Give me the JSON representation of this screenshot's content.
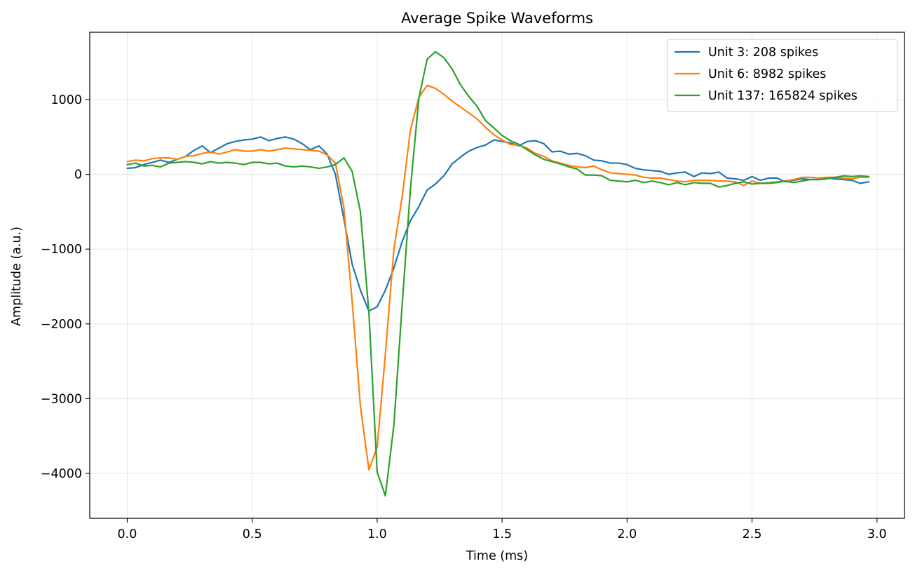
{
  "chart_data": {
    "type": "line",
    "title": "Average Spike Waveforms",
    "xlabel": "Time (ms)",
    "ylabel": "Amplitude (a.u.)",
    "xlim": [
      -0.15,
      3.11
    ],
    "ylim": [
      -4600,
      1900
    ],
    "xticks": [
      0.0,
      0.5,
      1.0,
      1.5,
      2.0,
      2.5,
      3.0
    ],
    "xtick_labels": [
      "0.0",
      "0.5",
      "1.0",
      "1.5",
      "2.0",
      "2.5",
      "3.0"
    ],
    "yticks": [
      -4000,
      -3000,
      -2000,
      -1000,
      0,
      1000
    ],
    "ytick_labels": [
      "−4000",
      "−3000",
      "−2000",
      "−1000",
      "0",
      "1000"
    ],
    "grid": true,
    "legend_position": "top-right",
    "x": [
      0.0,
      0.033,
      0.067,
      0.1,
      0.133,
      0.167,
      0.2,
      0.233,
      0.267,
      0.3,
      0.333,
      0.367,
      0.4,
      0.433,
      0.467,
      0.5,
      0.533,
      0.567,
      0.6,
      0.633,
      0.667,
      0.7,
      0.733,
      0.767,
      0.8,
      0.833,
      0.867,
      0.9,
      0.933,
      0.967,
      1.0,
      1.033,
      1.067,
      1.1,
      1.133,
      1.167,
      1.2,
      1.233,
      1.267,
      1.3,
      1.333,
      1.367,
      1.4,
      1.433,
      1.467,
      1.5,
      1.533,
      1.567,
      1.6,
      1.633,
      1.667,
      1.7,
      1.733,
      1.767,
      1.8,
      1.833,
      1.867,
      1.9,
      1.933,
      1.967,
      2.0,
      2.033,
      2.067,
      2.1,
      2.133,
      2.167,
      2.2,
      2.233,
      2.267,
      2.3,
      2.333,
      2.367,
      2.4,
      2.433,
      2.467,
      2.5,
      2.533,
      2.567,
      2.6,
      2.633,
      2.667,
      2.7,
      2.733,
      2.767,
      2.8,
      2.833,
      2.867,
      2.9,
      2.933,
      2.967
    ],
    "series": [
      {
        "name": "Unit 3: 208 spikes",
        "color": "#1f77b4",
        "values": [
          80,
          90,
          130,
          160,
          190,
          160,
          200,
          240,
          320,
          380,
          290,
          350,
          410,
          440,
          460,
          470,
          500,
          450,
          480,
          500,
          470,
          410,
          330,
          380,
          270,
          0,
          -600,
          -1200,
          -1550,
          -1830,
          -1770,
          -1550,
          -1250,
          -900,
          -620,
          -430,
          -210,
          -130,
          -20,
          140,
          230,
          310,
          360,
          390,
          460,
          440,
          420,
          380,
          440,
          450,
          410,
          300,
          310,
          270,
          280,
          250,
          190,
          180,
          150,
          150,
          130,
          80,
          60,
          50,
          40,
          0,
          20,
          30,
          -30,
          20,
          10,
          30,
          -50,
          -60,
          -80,
          -30,
          -80,
          -50,
          -50,
          -100,
          -80,
          -60,
          -70,
          -70,
          -50,
          -60,
          -70,
          -80,
          -120,
          -100
        ]
      },
      {
        "name": "Unit 6: 8982 spikes",
        "color": "#ff7f0e",
        "values": [
          170,
          190,
          180,
          210,
          220,
          220,
          200,
          240,
          250,
          280,
          300,
          270,
          300,
          330,
          310,
          310,
          330,
          310,
          330,
          350,
          340,
          330,
          320,
          310,
          260,
          150,
          -450,
          -1700,
          -3100,
          -3950,
          -3650,
          -2400,
          -1000,
          -300,
          590,
          1030,
          1190,
          1150,
          1070,
          980,
          900,
          820,
          740,
          630,
          530,
          460,
          400,
          390,
          350,
          280,
          240,
          180,
          150,
          120,
          100,
          90,
          110,
          60,
          20,
          10,
          0,
          -10,
          -40,
          -50,
          -50,
          -70,
          -90,
          -100,
          -80,
          -80,
          -80,
          -90,
          -90,
          -100,
          -150,
          -90,
          -120,
          -110,
          -100,
          -90,
          -70,
          -40,
          -40,
          -50,
          -40,
          -40,
          -50,
          -60,
          -40,
          -40
        ]
      },
      {
        "name": "Unit 137: 165824 spikes",
        "color": "#2ca02c",
        "values": [
          130,
          150,
          110,
          120,
          100,
          150,
          160,
          170,
          160,
          140,
          170,
          150,
          160,
          150,
          130,
          160,
          160,
          140,
          150,
          110,
          100,
          110,
          100,
          80,
          100,
          130,
          220,
          40,
          -500,
          -1850,
          -3980,
          -4300,
          -3350,
          -1750,
          -200,
          1020,
          1540,
          1640,
          1560,
          1410,
          1200,
          1040,
          910,
          720,
          620,
          520,
          450,
          400,
          330,
          260,
          200,
          170,
          140,
          100,
          70,
          -10,
          -10,
          -20,
          -80,
          -90,
          -100,
          -80,
          -110,
          -90,
          -110,
          -140,
          -110,
          -140,
          -110,
          -120,
          -120,
          -170,
          -150,
          -120,
          -100,
          -130,
          -120,
          -120,
          -110,
          -90,
          -110,
          -90,
          -70,
          -70,
          -60,
          -40,
          -20,
          -30,
          -20,
          -30
        ]
      }
    ]
  }
}
